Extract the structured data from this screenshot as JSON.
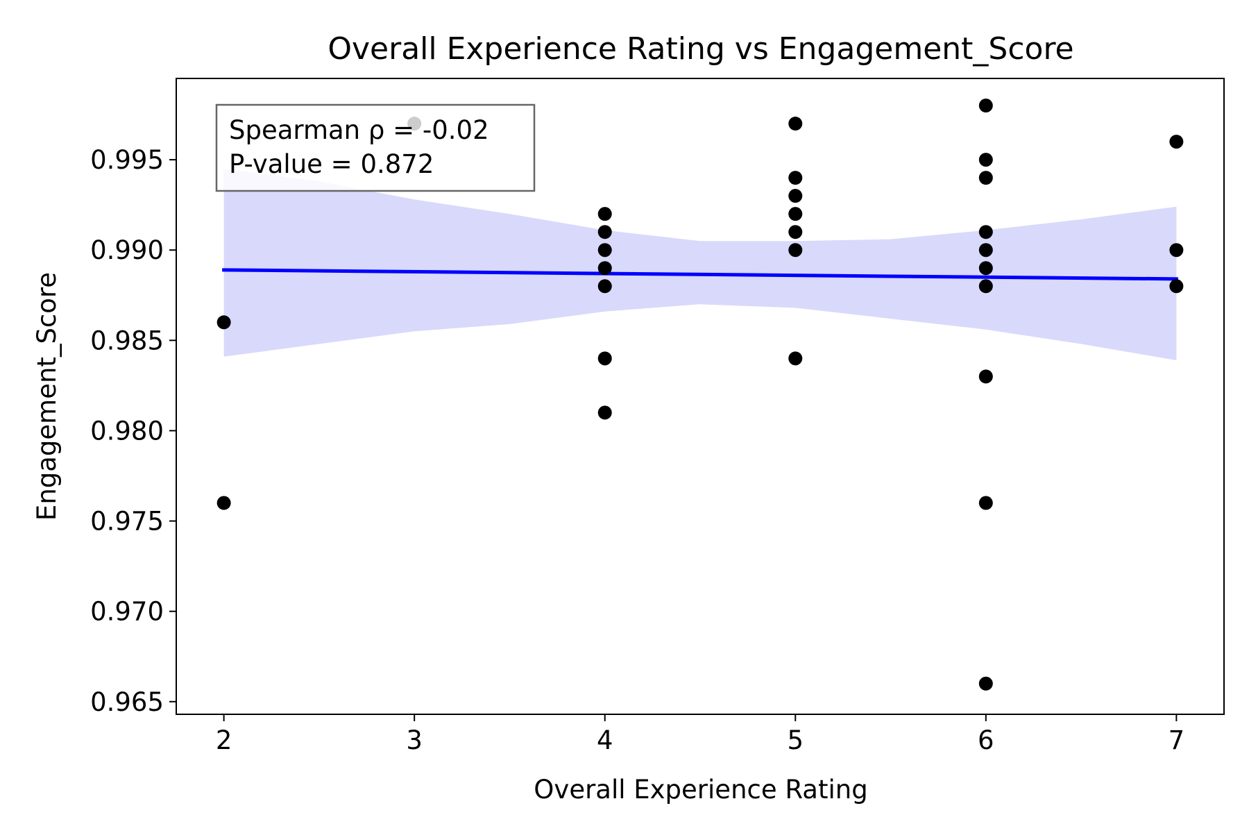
{
  "chart_data": {
    "type": "scatter",
    "title": "Overall Experience Rating vs Engagement_Score",
    "xlabel": "Overall Experience Rating",
    "ylabel": "Engagement_Score",
    "xlim": [
      1.75,
      7.25
    ],
    "ylim": [
      0.9643,
      0.9995
    ],
    "xticks": [
      2,
      3,
      4,
      5,
      6,
      7
    ],
    "xtick_labels": [
      "2",
      "3",
      "4",
      "5",
      "6",
      "7"
    ],
    "yticks": [
      0.965,
      0.97,
      0.975,
      0.98,
      0.985,
      0.99,
      0.995
    ],
    "ytick_labels": [
      "0.965",
      "0.970",
      "0.975",
      "0.980",
      "0.985",
      "0.990",
      "0.995"
    ],
    "grid": false,
    "points": [
      {
        "x": 2,
        "y": 0.986
      },
      {
        "x": 2,
        "y": 0.976
      },
      {
        "x": 3,
        "y": 0.997
      },
      {
        "x": 4,
        "y": 0.992
      },
      {
        "x": 4,
        "y": 0.991
      },
      {
        "x": 4,
        "y": 0.99
      },
      {
        "x": 4,
        "y": 0.989
      },
      {
        "x": 4,
        "y": 0.988
      },
      {
        "x": 4,
        "y": 0.984
      },
      {
        "x": 4,
        "y": 0.981
      },
      {
        "x": 5,
        "y": 0.997
      },
      {
        "x": 5,
        "y": 0.994
      },
      {
        "x": 5,
        "y": 0.993
      },
      {
        "x": 5,
        "y": 0.992
      },
      {
        "x": 5,
        "y": 0.991
      },
      {
        "x": 5,
        "y": 0.99
      },
      {
        "x": 5,
        "y": 0.984
      },
      {
        "x": 6,
        "y": 0.998
      },
      {
        "x": 6,
        "y": 0.995
      },
      {
        "x": 6,
        "y": 0.994
      },
      {
        "x": 6,
        "y": 0.991
      },
      {
        "x": 6,
        "y": 0.99
      },
      {
        "x": 6,
        "y": 0.989
      },
      {
        "x": 6,
        "y": 0.988
      },
      {
        "x": 6,
        "y": 0.983
      },
      {
        "x": 6,
        "y": 0.976
      },
      {
        "x": 6,
        "y": 0.966
      },
      {
        "x": 7,
        "y": 0.996
      },
      {
        "x": 7,
        "y": 0.99
      },
      {
        "x": 7,
        "y": 0.988
      }
    ],
    "regression_line": {
      "x": [
        2,
        7
      ],
      "y": [
        0.9889,
        0.9884
      ],
      "color": "#0000ff"
    },
    "confidence_band": {
      "color": "#d9d9fb",
      "x": [
        2,
        2.5,
        3,
        3.5,
        4,
        4.5,
        5,
        5.5,
        6,
        6.5,
        7
      ],
      "upper": [
        0.9945,
        0.9938,
        0.9928,
        0.992,
        0.9911,
        0.9905,
        0.9905,
        0.9906,
        0.9911,
        0.9917,
        0.9924
      ],
      "lower": [
        0.9841,
        0.9848,
        0.9855,
        0.9859,
        0.9866,
        0.987,
        0.9868,
        0.9862,
        0.9856,
        0.9848,
        0.9839
      ]
    },
    "marker_color": "#000000",
    "annotation": {
      "lines": [
        "Spearman ρ = -0.02",
        "P-value = 0.872"
      ],
      "placement": "top-left"
    }
  }
}
